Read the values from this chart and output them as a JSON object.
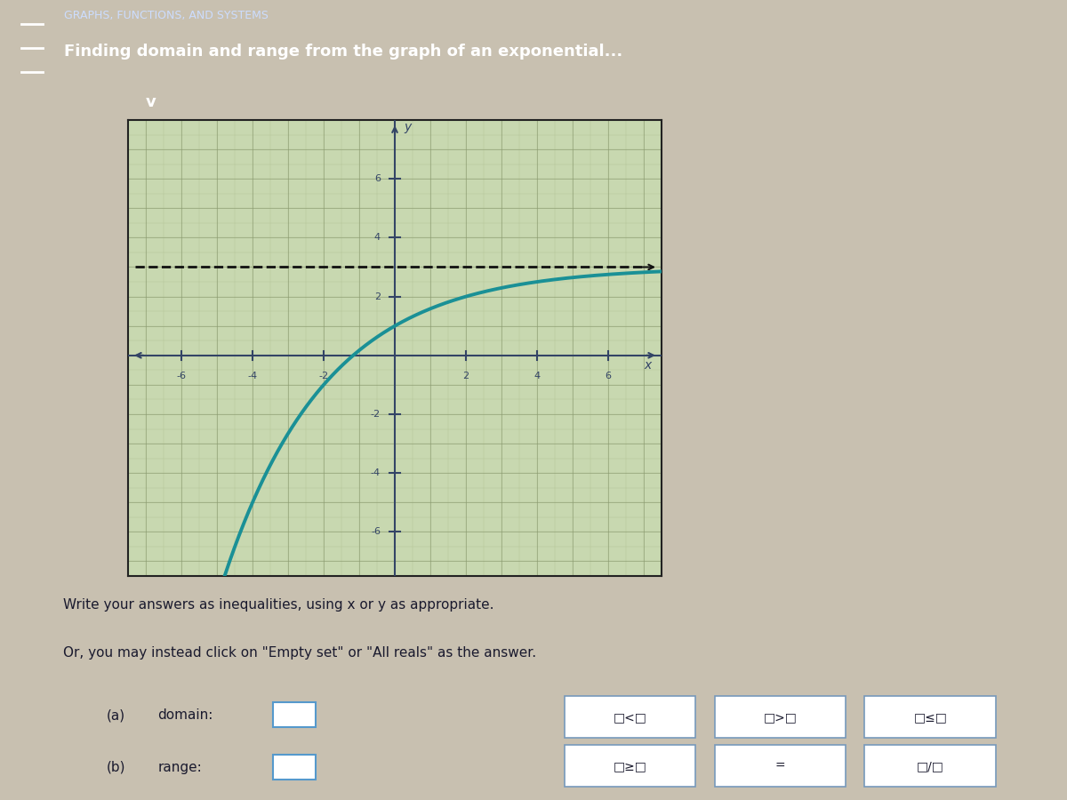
{
  "title_small": "GRAPHS, FUNCTIONS, AND SYSTEMS",
  "title_main": "Finding domain and range from the graph of an exponential...",
  "header_bg": "#2b6cb0",
  "header_text_color": "#ffffff",
  "graph_bg": "#c8d8b0",
  "graph_border_color": "#222222",
  "curve_color": "#1a9096",
  "curve_linewidth": 2.8,
  "asymptote_color": "#111111",
  "asymptote_y": 3.0,
  "asymptote_linestyle": "--",
  "asymptote_linewidth": 2.0,
  "x_axis_range": [
    -7.5,
    7.5
  ],
  "y_axis_range": [
    -7.5,
    8.0
  ],
  "x_ticks": [
    -6,
    -4,
    -2,
    2,
    4,
    6
  ],
  "y_ticks": [
    -6,
    -4,
    -2,
    2,
    4,
    6
  ],
  "axis_color": "#334466",
  "tick_color": "#334466",
  "grid_color_major": "#8a9a70",
  "grid_color_minor": "#a0b080",
  "body_bg": "#c8c0b0",
  "label_a": "(a)",
  "label_b": "(b)",
  "domain_label": "domain:",
  "range_label": "range:",
  "write_text": "Write your answers as inequalities, using x or y as appropriate.",
  "click_text": "Or, you may instead click on \"Empty set\" or \"All reals\" as the answer.",
  "dropdown_bg": "#5bb8c8",
  "dropdown_color": "#ffffff"
}
